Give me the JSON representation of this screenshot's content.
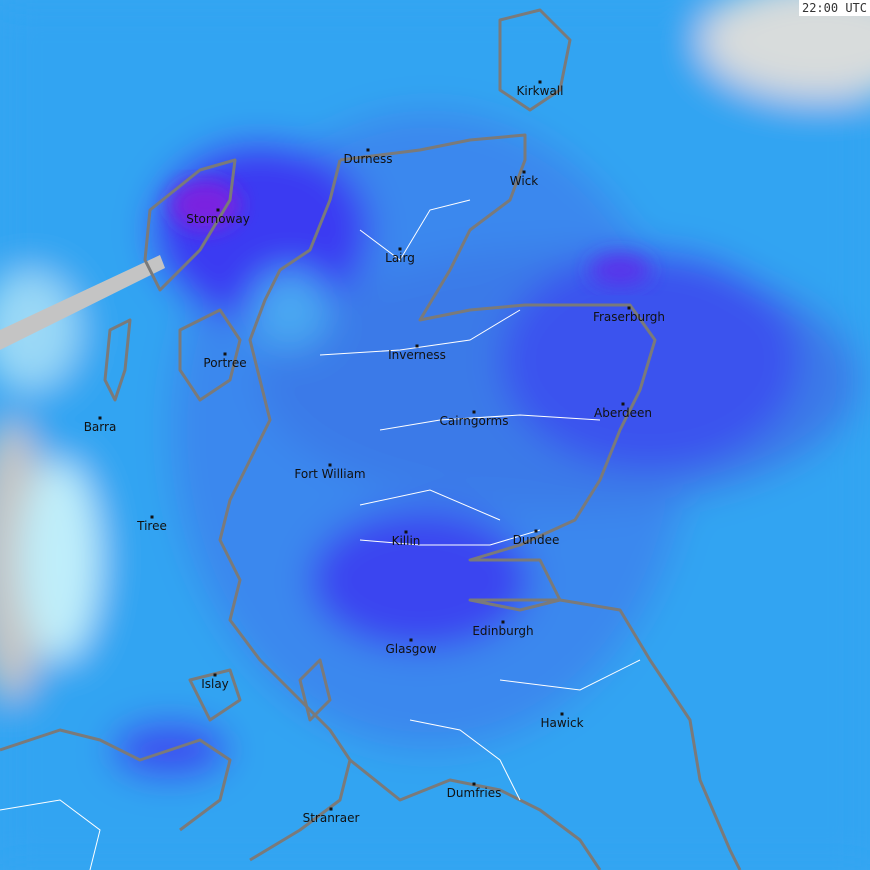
{
  "timestamp": "22:00 UTC",
  "colors": {
    "sea_rain_light": "#35a6f2",
    "rain_moderate": "#3b73e8",
    "rain_heavy": "#3a3af0",
    "rain_intense": "#7a22e0",
    "coast": "#7a7a7a",
    "river": "#ffffff",
    "no_data": "#c0c0c0",
    "drizzle": "#aee8f8"
  },
  "places": [
    {
      "name": "Kirkwall"
    },
    {
      "name": "Durness"
    },
    {
      "name": "Wick"
    },
    {
      "name": "Stornoway"
    },
    {
      "name": "Lairg"
    },
    {
      "name": "Fraserburgh"
    },
    {
      "name": "Inverness"
    },
    {
      "name": "Portree"
    },
    {
      "name": "Aberdeen"
    },
    {
      "name": "Cairngorms"
    },
    {
      "name": "Barra"
    },
    {
      "name": "Fort William"
    },
    {
      "name": "Tiree"
    },
    {
      "name": "Killin"
    },
    {
      "name": "Dundee"
    },
    {
      "name": "Edinburgh"
    },
    {
      "name": "Glasgow"
    },
    {
      "name": "Islay"
    },
    {
      "name": "Hawick"
    },
    {
      "name": "Dumfries"
    },
    {
      "name": "Stranraer"
    }
  ]
}
